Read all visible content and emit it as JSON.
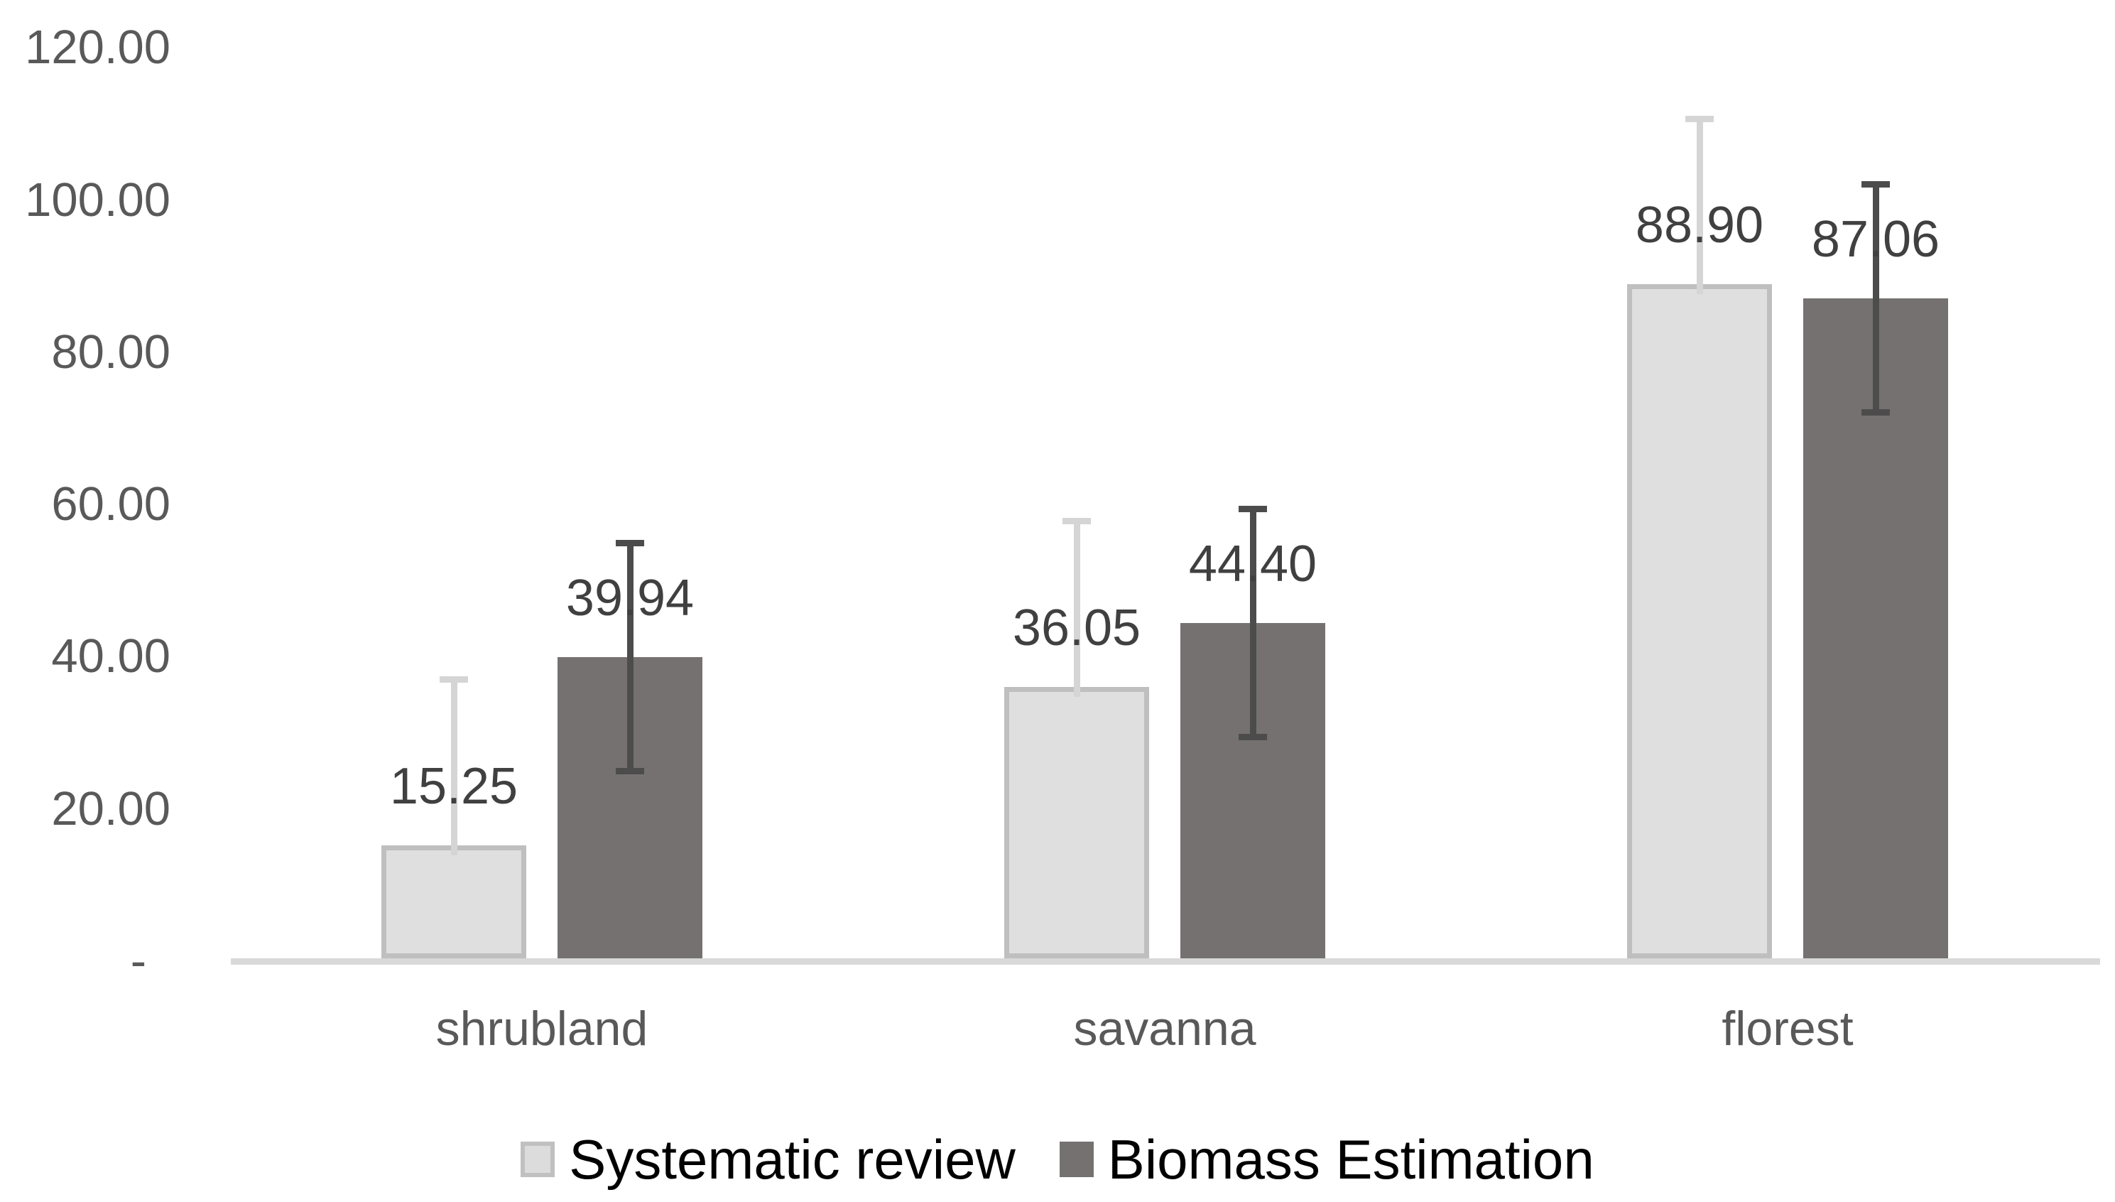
{
  "chart_data": {
    "type": "bar",
    "title": "",
    "xlabel": "",
    "ylabel": "",
    "categories": [
      "shrubland",
      "savanna",
      "florest"
    ],
    "series": [
      {
        "name": "Systematic review",
        "values": [
          15.25,
          36.05,
          88.9
        ],
        "data_labels": [
          "15.25",
          "36.05",
          "88.90"
        ],
        "error_plus": 21.75,
        "error_minus": 0,
        "error_top_values": [
          37.0,
          57.8,
          110.65
        ],
        "fill": "#dfdfdf",
        "border": "#bfbfbf",
        "error_color": "#d5d5d5"
      },
      {
        "name": "Biomass Estimation",
        "values": [
          39.94,
          44.4,
          87.06
        ],
        "data_labels": [
          "39.94",
          "44.40",
          "87.06"
        ],
        "error_plus": 15.0,
        "error_minus": 15.0,
        "error_top_values": [
          54.94,
          59.4,
          102.06
        ],
        "error_bottom_values": [
          24.94,
          29.4,
          72.06
        ],
        "fill": "#767171",
        "border": "#767171",
        "error_color": "#4d4c4c"
      }
    ],
    "y_axis": {
      "ylim": [
        0,
        120
      ],
      "tick_values": [
        120,
        100,
        80,
        60,
        40,
        20,
        0
      ],
      "tick_labels": [
        "120.00",
        "100.00",
        "80.00",
        "60.00",
        "40.00",
        "20.00",
        "-"
      ],
      "grid": false
    },
    "legend": {
      "position": "bottom",
      "entries": [
        "Systematic review",
        "Biomass Estimation"
      ]
    }
  },
  "colors": {
    "background": "#ffffff",
    "axis_line": "#d9d9d9",
    "tick_text": "#595959",
    "category_text": "#595959",
    "data_label_text": "#404040",
    "legend_text": "#000000"
  }
}
